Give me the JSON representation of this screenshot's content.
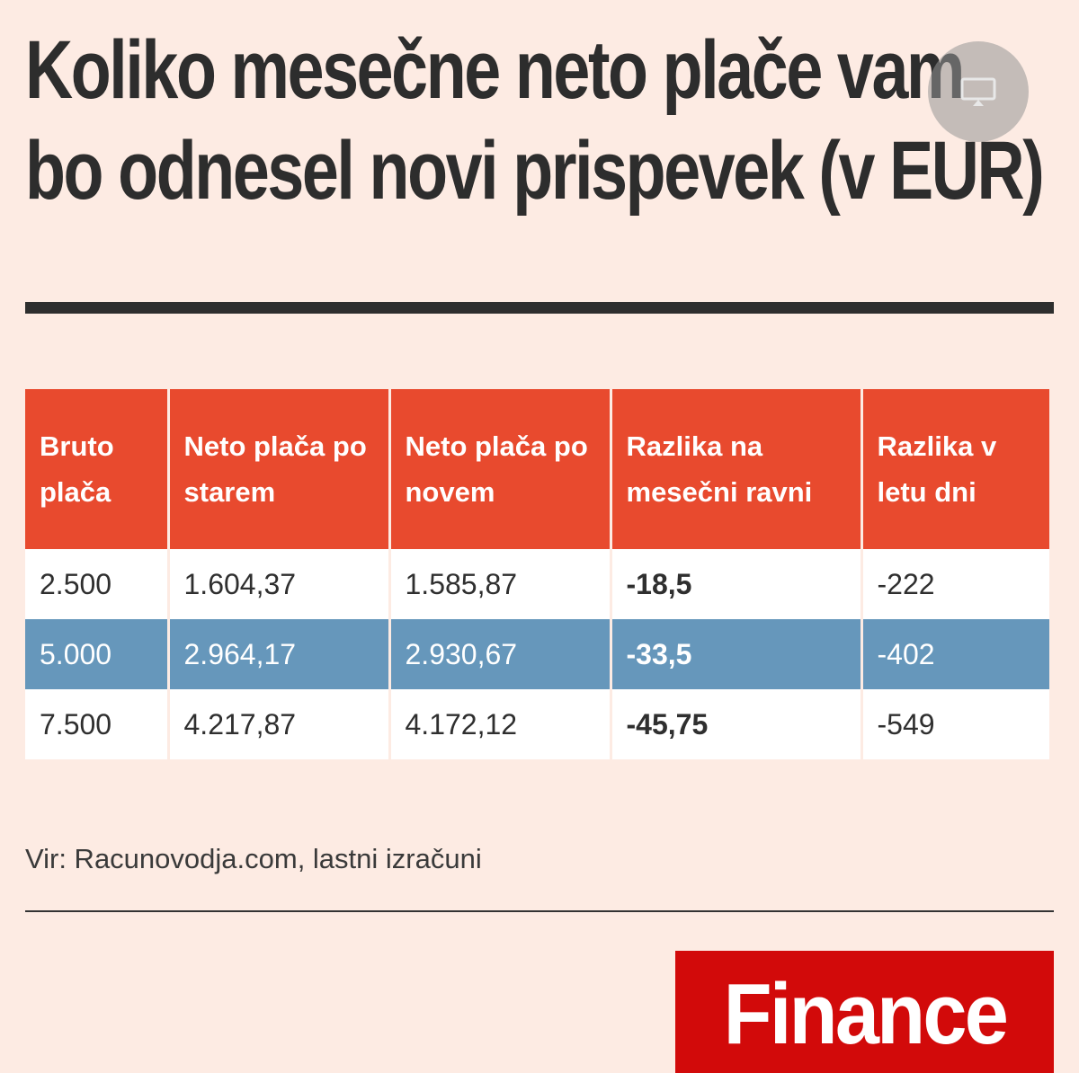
{
  "chart_data": {
    "type": "table",
    "title": "Koliko mesečne neto plače vam bo odnesel novi prispevek (v EUR)",
    "columns": [
      "Bruto plača",
      "Neto plača po starem",
      "Neto plača po novem",
      "Razlika na mesečni ravni",
      "Razlika v letu dni"
    ],
    "rows": [
      [
        "2.500",
        "1.604,37",
        "1.585,87",
        "-18,5",
        "-222"
      ],
      [
        "5.000",
        "2.964,17",
        "2.930,67",
        "-33,5",
        "-402"
      ],
      [
        "7.500",
        "4.217,87",
        "4.172,12",
        "-45,75",
        "-549"
      ]
    ],
    "source": "Vir: Racunovodja.com, lastni izračuni"
  },
  "logo": {
    "text": "Finance",
    "color": "#d20a0a"
  },
  "colors": {
    "background": "#fdebe3",
    "header": "#e84a2e",
    "highlight_row": "#6697bb",
    "text": "#2f2f2f"
  },
  "icons": {
    "overlay": "screen-share-icon"
  }
}
